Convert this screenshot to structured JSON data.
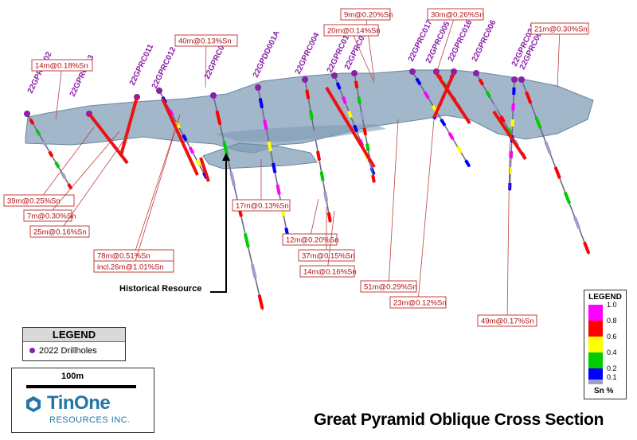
{
  "title": "Great Pyramid Oblique Cross Section",
  "historical_label": "Historical Resource",
  "legend": {
    "heading": "LEGEND",
    "item": "2022 Drillholes"
  },
  "scale": {
    "label": "100m"
  },
  "brand": {
    "name": "TinOne",
    "sub": "RESOURCES INC."
  },
  "sn_legend": {
    "heading": "LEGEND",
    "unit": "Sn %",
    "ticks": [
      "1.0",
      "0.8",
      "0.6",
      "0.4",
      "0.2",
      "0.1"
    ],
    "colors": [
      "#ff00ff",
      "#ff0000",
      "#ffff00",
      "#00cc00",
      "#0000ff",
      "#9aa0c8"
    ]
  },
  "holes": [
    "22GPRC002",
    "22GPRC003",
    "22GPRC011",
    "22GPRC012",
    "22GPRC021",
    "22GPDD001A",
    "22GPRC004",
    "22GPRC014",
    "22GPRC013",
    "22GPRC017",
    "22GPRC005",
    "22GPRC016",
    "22GPRC006",
    "22GPRC024",
    "22GPRC007"
  ],
  "intercepts": [
    "14m@0.18%Sn",
    "39m@0.25%Sn",
    "7m@0.30%Sn",
    "25m@0.16%Sn",
    "78m@0.51%Sn",
    "incl.26m@1.01%Sn",
    "40m@0.13%Sn",
    "17m@0.13%Sn",
    "12m@0.20%Sn",
    "37m@0.15%Sn",
    "14m@0.16%Sn",
    "9m@0.20%Sn",
    "20m@0.14%Sn",
    "30m@0.26%Sn",
    "51m@0.29%Sn",
    "23m@0.12%Sn",
    "21m@0.30%Sn",
    "49m@0.17%Sn"
  ]
}
